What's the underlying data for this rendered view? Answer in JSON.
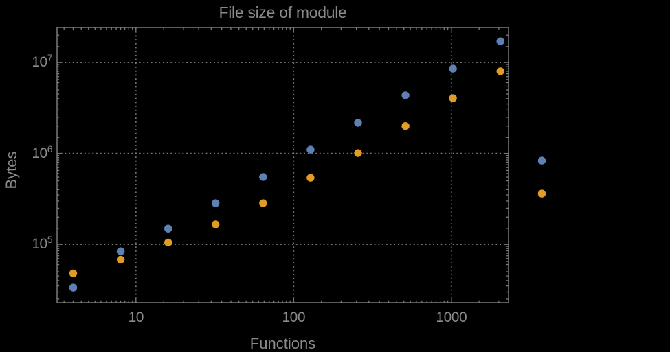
{
  "window": {
    "background": "#000000"
  },
  "chart_data": {
    "type": "scatter",
    "title": "File size of module",
    "xlabel": "Functions",
    "ylabel": "Bytes",
    "xscale": "log",
    "yscale": "log",
    "xlim": [
      3.16,
      2305
    ],
    "ylim": [
      22900,
      24300000
    ],
    "grid": true,
    "gridline_style": "dotted",
    "legend": {
      "visible": false
    },
    "x_gridlines": [
      10,
      100,
      1000
    ],
    "y_gridlines": [
      100000,
      1000000,
      10000000
    ],
    "x_tick_labels": [
      {
        "value": 10,
        "label": "10"
      },
      {
        "value": 100,
        "label": "100"
      },
      {
        "value": 1000,
        "label": "1000"
      }
    ],
    "y_tick_labels": [
      {
        "value": 100000,
        "base": "10",
        "exponent": "5"
      },
      {
        "value": 1000000,
        "base": "10",
        "exponent": "6"
      },
      {
        "value": 10000000,
        "base": "10",
        "exponent": "7"
      }
    ],
    "series": [
      {
        "name": "series-blue",
        "color": "#5e81b5",
        "marker": "circle",
        "points": [
          [
            4,
            33500
          ],
          [
            8,
            84000
          ],
          [
            16,
            149000
          ],
          [
            32,
            284000
          ],
          [
            64,
            550000
          ],
          [
            128,
            1100000
          ],
          [
            256,
            2170000
          ],
          [
            512,
            4350000
          ],
          [
            1024,
            8560000
          ],
          [
            2048,
            17100000
          ],
          [
            3750,
            834000
          ]
        ]
      },
      {
        "name": "series-orange",
        "color": "#e19c24",
        "marker": "circle",
        "points": [
          [
            4,
            48000
          ],
          [
            8,
            68000
          ],
          [
            16,
            105000
          ],
          [
            32,
            166000
          ],
          [
            64,
            284000
          ],
          [
            128,
            540000
          ],
          [
            256,
            1010000
          ],
          [
            512,
            2000000
          ],
          [
            1024,
            4050000
          ],
          [
            2048,
            8000000
          ],
          [
            3750,
            362000
          ]
        ]
      }
    ],
    "styles": {
      "frame_color": "#7b7b7b",
      "grid_color": "#757575",
      "tick_color": "#7b7b7b",
      "text_color": "#8a8a8a"
    }
  }
}
